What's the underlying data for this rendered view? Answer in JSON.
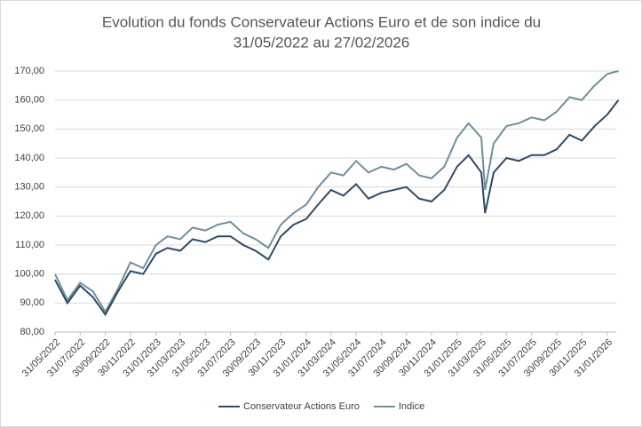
{
  "chart_data": {
    "type": "line",
    "title": [
      "Evolution du fonds Conservateur Actions Euro et de son indice du",
      "31/05/2022 au 27/02/2026"
    ],
    "x": [
      "31/05/2022",
      "30/06/2022",
      "31/07/2022",
      "31/08/2022",
      "30/09/2022",
      "31/10/2022",
      "30/11/2022",
      "31/12/2022",
      "31/01/2023",
      "28/02/2023",
      "31/03/2023",
      "30/04/2023",
      "31/05/2023",
      "30/06/2023",
      "31/07/2023",
      "31/08/2023",
      "30/09/2023",
      "31/10/2023",
      "30/11/2023",
      "31/12/2023",
      "31/01/2024",
      "29/02/2024",
      "31/03/2024",
      "30/04/2024",
      "31/05/2024",
      "30/06/2024",
      "31/07/2024",
      "31/08/2024",
      "30/09/2024",
      "31/10/2024",
      "30/11/2024",
      "31/12/2024",
      "31/01/2025",
      "28/02/2025",
      "31/03/2025",
      "09/04/2025",
      "30/04/2025",
      "31/05/2025",
      "30/06/2025",
      "31/07/2025",
      "31/08/2025",
      "30/09/2025",
      "31/10/2025",
      "30/11/2025",
      "31/12/2025",
      "31/01/2026",
      "27/02/2026"
    ],
    "series": [
      {
        "name": "Conservateur Actions Euro",
        "color": "#2e4a66",
        "values": [
          98,
          90,
          96,
          92,
          86,
          94,
          101,
          100,
          107,
          109,
          108,
          112,
          111,
          113,
          113,
          110,
          108,
          105,
          113,
          117,
          119,
          124,
          129,
          127,
          131,
          126,
          128,
          129,
          130,
          126,
          125,
          129,
          137,
          141,
          135,
          121,
          135,
          140,
          139,
          141,
          141,
          143,
          148,
          146,
          151,
          155,
          160
        ]
      },
      {
        "name": "Indice",
        "color": "#6f8f9c",
        "values": [
          100,
          91,
          97,
          94,
          87,
          95,
          104,
          102,
          110,
          113,
          112,
          116,
          115,
          117,
          118,
          114,
          112,
          109,
          117,
          121,
          124,
          130,
          135,
          134,
          139,
          135,
          137,
          136,
          138,
          134,
          133,
          137,
          147,
          152,
          147,
          129,
          145,
          151,
          152,
          154,
          153,
          156,
          161,
          160,
          165,
          169,
          170
        ]
      }
    ],
    "xticks": [
      "31/05/2022",
      "31/07/2022",
      "30/09/2022",
      "30/11/2022",
      "31/01/2023",
      "31/03/2023",
      "31/05/2023",
      "31/07/2023",
      "30/09/2023",
      "30/11/2023",
      "31/01/2024",
      "31/03/2024",
      "31/05/2024",
      "31/07/2024",
      "30/09/2024",
      "30/11/2024",
      "31/01/2025",
      "31/03/2025",
      "31/05/2025",
      "31/07/2025",
      "30/09/2025",
      "30/11/2025",
      "31/01/2026"
    ],
    "ylim": [
      80,
      170
    ],
    "yticks": [
      {
        "value": 80,
        "label": "80,00"
      },
      {
        "value": 90,
        "label": "90,00"
      },
      {
        "value": 100,
        "label": "100,00"
      },
      {
        "value": 110,
        "label": "110,00"
      },
      {
        "value": 120,
        "label": "120,00"
      },
      {
        "value": 130,
        "label": "130,00"
      },
      {
        "value": 140,
        "label": "140,00"
      },
      {
        "value": 150,
        "label": "150,00"
      },
      {
        "value": 160,
        "label": "160,00"
      },
      {
        "value": 170,
        "label": "170,00"
      }
    ],
    "grid": true,
    "legend": "bottom"
  }
}
